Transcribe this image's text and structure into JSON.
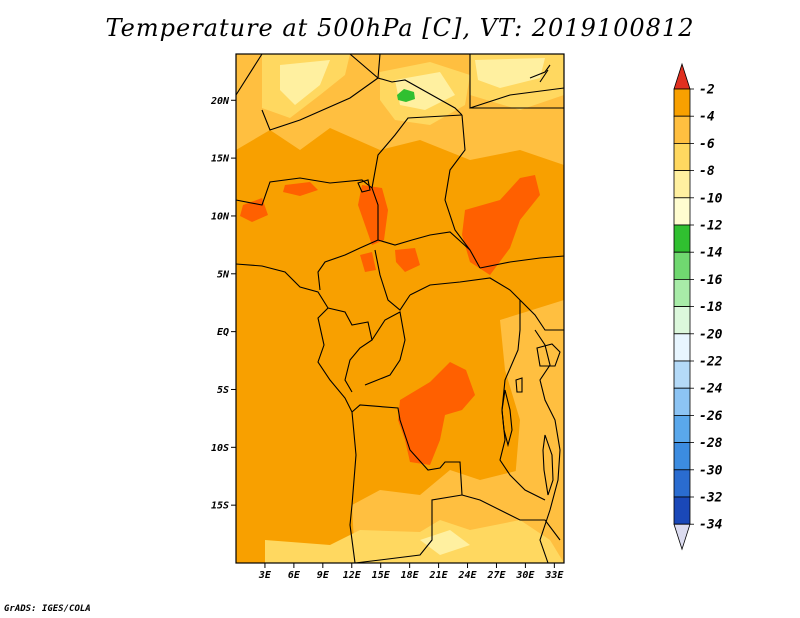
{
  "title": "Temperature at 500hPa [C], VT: 2019100812",
  "credit": "GrADS: IGES/COLA",
  "map": {
    "lon_range": [
      0,
      34
    ],
    "lat_range": [
      -20,
      24
    ],
    "lat_labels": [
      "20N",
      "15N",
      "10N",
      "5N",
      "EQ",
      "5S",
      "10S",
      "15S"
    ],
    "lat_values": [
      20,
      15,
      10,
      5,
      0,
      -5,
      -10,
      -15
    ],
    "lon_labels": [
      "3E",
      "6E",
      "9E",
      "12E",
      "15E",
      "18E",
      "21E",
      "24E",
      "27E",
      "30E",
      "33E"
    ],
    "lon_values": [
      3,
      6,
      9,
      12,
      15,
      18,
      21,
      24,
      27,
      30,
      33
    ],
    "background_color": "#f8a000"
  },
  "colorbar": {
    "labels": [
      "-2",
      "-4",
      "-6",
      "-8",
      "-10",
      "-12",
      "-14",
      "-16",
      "-18",
      "-20",
      "-22",
      "-24",
      "-26",
      "-28",
      "-30",
      "-32",
      "-34"
    ],
    "colors": [
      "#ff6000",
      "#f8a000",
      "#ffbf40",
      "#ffd860",
      "#fff0a0",
      "#fffdd0",
      "#30c030",
      "#70d870",
      "#a8eca8",
      "#dcf8dc",
      "#e8f6ff",
      "#b4daf8",
      "#8cc4f4",
      "#5aa8ec",
      "#3c8ce0",
      "#2a6cd0",
      "#1a48b8",
      "#101070"
    ],
    "top_arrow_color": "#e03020",
    "bottom_arrow_color": "#dcdcf0"
  }
}
